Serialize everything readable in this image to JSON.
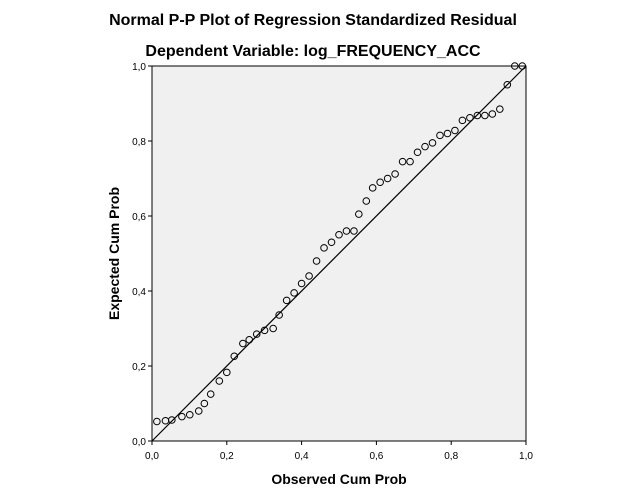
{
  "chart_data": {
    "type": "scatter",
    "title": "Normal P-P Plot of Regression Standardized Residual",
    "subtitle": "Dependent Variable: log_FREQUENCY_ACC",
    "xlabel": "Observed Cum Prob",
    "ylabel": "Expected Cum Prob",
    "xlim": [
      0.0,
      1.0
    ],
    "ylim": [
      0.0,
      1.0
    ],
    "x_ticks": [
      "0,0",
      "0,2",
      "0,4",
      "0,6",
      "0,8",
      "1,0"
    ],
    "y_ticks": [
      "0,0",
      "0,2",
      "0,4",
      "0,6",
      "0,8",
      "1,0"
    ],
    "grid": false,
    "reference_line": {
      "from": [
        0.0,
        0.0
      ],
      "to": [
        1.0,
        1.0
      ]
    },
    "colors": {
      "plot_background": "#f0f0f0",
      "marker_stroke": "#000000",
      "line": "#000000"
    },
    "points": {
      "x": [
        0.013,
        0.036,
        0.053,
        0.08,
        0.101,
        0.125,
        0.14,
        0.157,
        0.18,
        0.2,
        0.22,
        0.243,
        0.26,
        0.28,
        0.301,
        0.324,
        0.34,
        0.36,
        0.38,
        0.4,
        0.42,
        0.44,
        0.46,
        0.48,
        0.5,
        0.52,
        0.54,
        0.553,
        0.573,
        0.59,
        0.61,
        0.63,
        0.65,
        0.67,
        0.69,
        0.71,
        0.73,
        0.75,
        0.77,
        0.79,
        0.81,
        0.83,
        0.85,
        0.87,
        0.89,
        0.91,
        0.93,
        0.95,
        0.97,
        0.99
      ],
      "y": [
        0.052,
        0.054,
        0.056,
        0.065,
        0.07,
        0.08,
        0.1,
        0.125,
        0.16,
        0.183,
        0.226,
        0.26,
        0.27,
        0.285,
        0.295,
        0.3,
        0.336,
        0.375,
        0.395,
        0.42,
        0.44,
        0.48,
        0.515,
        0.53,
        0.55,
        0.56,
        0.56,
        0.605,
        0.64,
        0.675,
        0.69,
        0.7,
        0.712,
        0.745,
        0.745,
        0.77,
        0.785,
        0.795,
        0.815,
        0.82,
        0.828,
        0.855,
        0.862,
        0.868,
        0.868,
        0.872,
        0.885,
        0.95,
        1.0,
        1.0
      ]
    }
  }
}
